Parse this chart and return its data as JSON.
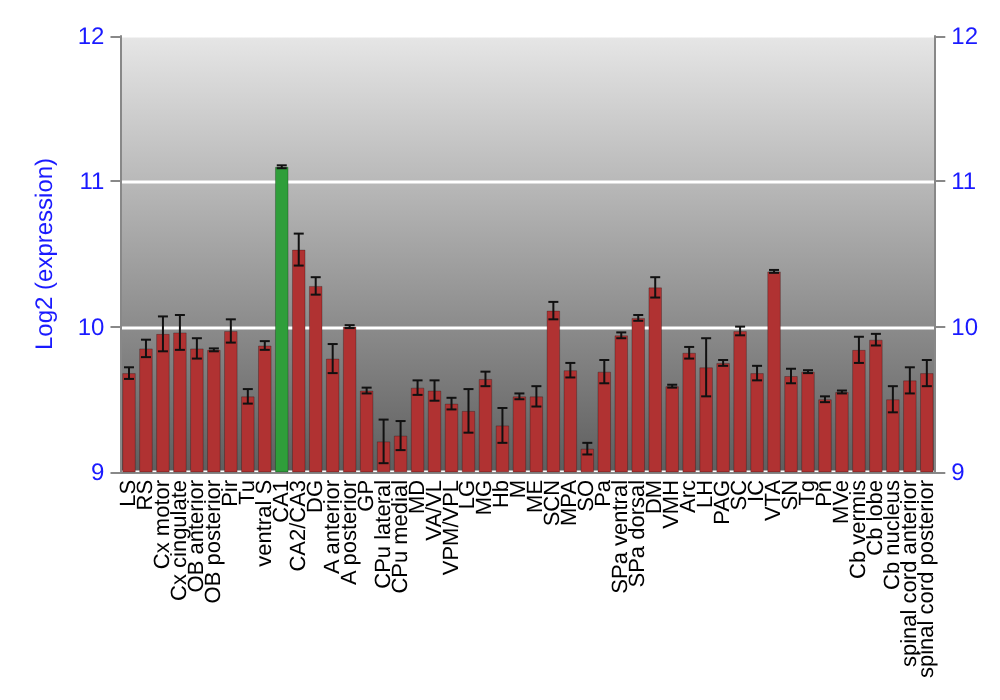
{
  "chart_data": {
    "type": "bar",
    "ylabel": "Log2 (expression)",
    "categories": [
      "LS",
      "RS",
      "Cx motor",
      "Cx cingulate",
      "OB anterior",
      "OB posterior",
      "Pir",
      "Tu",
      "ventral S",
      "CA1",
      "CA2/CA3",
      "DG",
      "A anterior",
      "A posterior",
      "GP",
      "CPu lateral",
      "CPu medial",
      "MD",
      "VA/VL",
      "VPM/VPL",
      "LG",
      "MG",
      "Hb",
      "M",
      "ME",
      "SCN",
      "MPA",
      "SO",
      "Pa",
      "SPa ventral",
      "SPa dorsal",
      "DM",
      "VMH",
      "Arc",
      "LH",
      "PAG",
      "SC",
      "IC",
      "VTA",
      "SN",
      "Tg",
      "Pn",
      "MVe",
      "Cb vermis",
      "Cb lobe",
      "Cb nucleus",
      "spinal cord anterior",
      "spinal cord posterior"
    ],
    "values": [
      9.68,
      9.85,
      9.95,
      9.96,
      9.85,
      9.84,
      9.97,
      9.52,
      9.87,
      11.1,
      10.53,
      10.28,
      9.78,
      10.0,
      9.56,
      9.21,
      9.25,
      9.58,
      9.56,
      9.47,
      9.42,
      9.64,
      9.32,
      9.52,
      9.52,
      10.11,
      9.7,
      9.16,
      9.69,
      9.94,
      10.06,
      10.27,
      9.59,
      9.82,
      9.72,
      9.75,
      9.97,
      9.68,
      10.38,
      9.66,
      9.69,
      9.5,
      9.55,
      9.84,
      9.91,
      9.5,
      9.63,
      9.68
    ],
    "errors": [
      0.04,
      0.06,
      0.12,
      0.12,
      0.07,
      0.01,
      0.08,
      0.05,
      0.03,
      0.01,
      0.11,
      0.06,
      0.1,
      0.01,
      0.02,
      0.15,
      0.1,
      0.05,
      0.07,
      0.04,
      0.15,
      0.05,
      0.12,
      0.02,
      0.07,
      0.06,
      0.05,
      0.04,
      0.08,
      0.02,
      0.02,
      0.07,
      0.01,
      0.04,
      0.2,
      0.02,
      0.03,
      0.05,
      0.01,
      0.05,
      0.01,
      0.02,
      0.01,
      0.09,
      0.04,
      0.09,
      0.09,
      0.09
    ],
    "colors": [
      "#b03232",
      "#b03232",
      "#b03232",
      "#b03232",
      "#b03232",
      "#b03232",
      "#b03232",
      "#b03232",
      "#b03232",
      "#2f9e3a",
      "#b03232",
      "#b03232",
      "#b03232",
      "#b03232",
      "#b03232",
      "#b03232",
      "#b03232",
      "#b03232",
      "#b03232",
      "#b03232",
      "#b03232",
      "#b03232",
      "#b03232",
      "#b03232",
      "#b03232",
      "#b03232",
      "#b03232",
      "#b03232",
      "#b03232",
      "#b03232",
      "#b03232",
      "#b03232",
      "#b03232",
      "#b03232",
      "#b03232",
      "#b03232",
      "#b03232",
      "#b03232",
      "#b03232",
      "#b03232",
      "#b03232",
      "#b03232",
      "#b03232",
      "#b03232",
      "#b03232",
      "#b03232",
      "#b03232",
      "#b03232"
    ],
    "ylim": [
      9,
      12
    ],
    "yticks": [
      9,
      10,
      11,
      12
    ],
    "y2lim": [
      9,
      12
    ],
    "y2ticks": [
      9,
      10,
      11,
      12
    ],
    "grid": "y"
  }
}
